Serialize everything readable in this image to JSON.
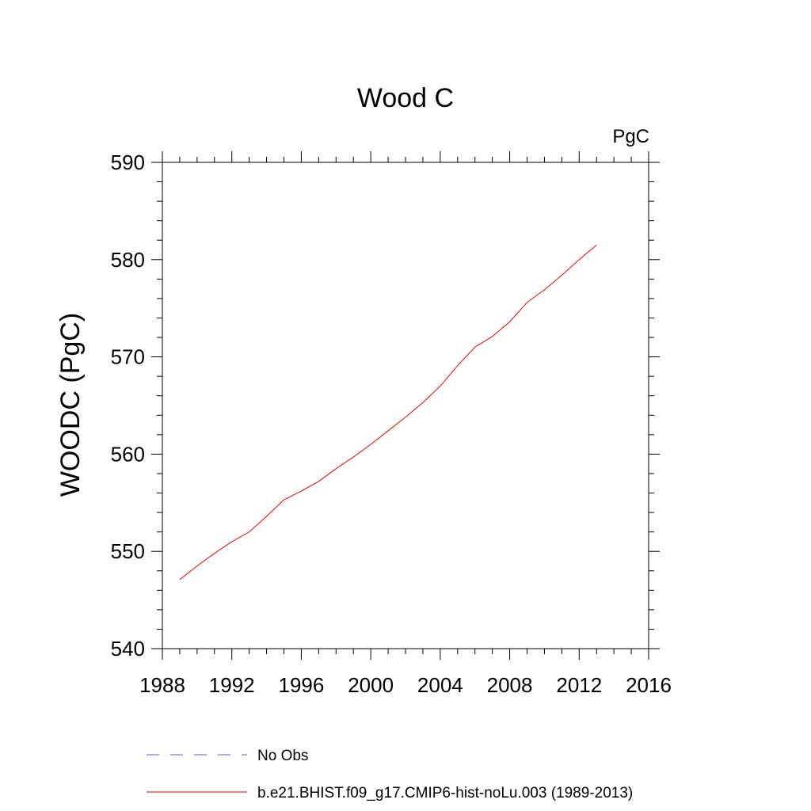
{
  "chart_data": {
    "type": "line",
    "title": "Wood C",
    "units": "PgC",
    "ylabel": "WOODC  (PgC)",
    "xlabel": "",
    "xlim": [
      1988,
      2016
    ],
    "ylim": [
      540,
      590
    ],
    "xticks": [
      1988,
      1992,
      1996,
      2000,
      2004,
      2008,
      2012,
      2016
    ],
    "yticks": [
      540,
      550,
      560,
      570,
      580,
      590
    ],
    "grid": false,
    "legend_position": "bottom",
    "series": [
      {
        "name": "No Obs",
        "color": "#6a5acd",
        "style": "dashed",
        "x": [],
        "y": []
      },
      {
        "name": "b.e21.BHIST.f09_g17.CMIP6-hist-noLu.003 (1989-2013)",
        "color": "#ff0000",
        "style": "solid",
        "x": [
          1989,
          1990,
          1991,
          1992,
          1993,
          1994,
          1995,
          1996,
          1997,
          1998,
          1999,
          2000,
          2001,
          2002,
          2003,
          2004,
          2005,
          2006,
          2007,
          2008,
          2009,
          2010,
          2011,
          2012,
          2013
        ],
        "y": [
          547.1,
          548.5,
          549.8,
          551.0,
          552.0,
          553.6,
          555.3,
          556.2,
          557.2,
          558.5,
          559.7,
          561.0,
          562.4,
          563.8,
          565.3,
          567.0,
          569.1,
          571.0,
          572.1,
          573.6,
          575.6,
          576.9,
          578.4,
          580.0,
          581.5
        ]
      }
    ]
  }
}
